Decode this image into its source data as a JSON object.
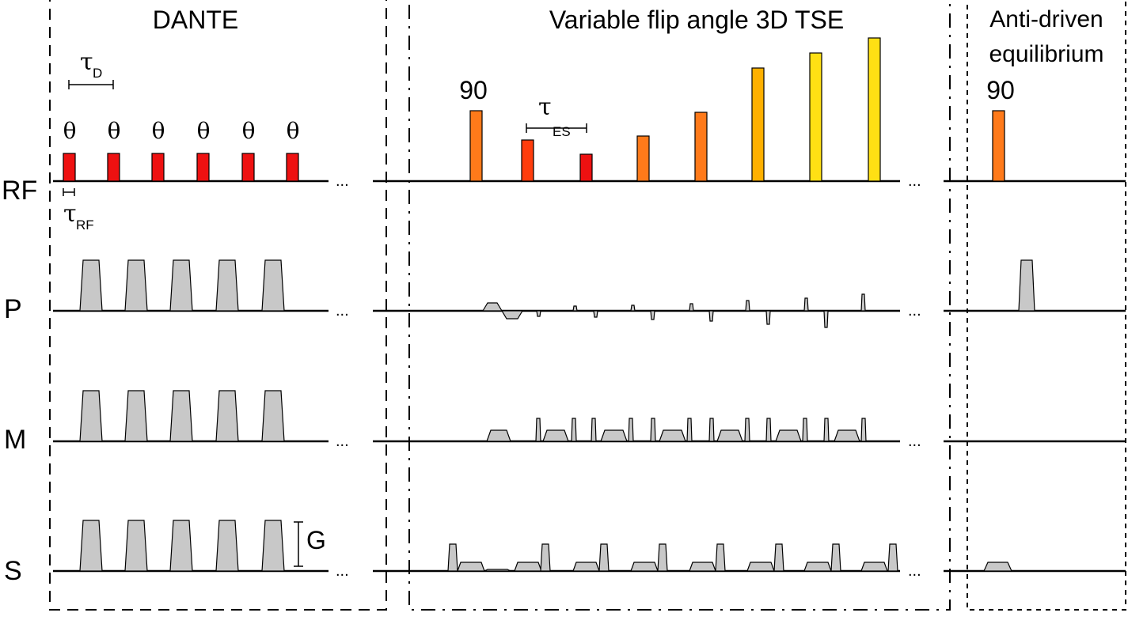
{
  "sections": {
    "dante": "DANTE",
    "tse": "Variable flip angle 3D TSE",
    "anti_line1": "Anti-driven",
    "anti_line2": "equilibrium"
  },
  "rows": {
    "rf": "RF",
    "p": "P",
    "m": "M",
    "s": "S"
  },
  "labels": {
    "theta": "θ",
    "tau": "τ",
    "tau_d_sub": "D",
    "tau_rf_sub": "RF",
    "tau_es_sub": "ES",
    "ninety": "90",
    "gradient": "G",
    "ellipsis": "..."
  },
  "colors": {
    "low": "#ee1111",
    "mid_low": "#ff3d0d",
    "mid": "#ff7a1a",
    "high": "#ffb000",
    "top": "#ffe014"
  }
}
